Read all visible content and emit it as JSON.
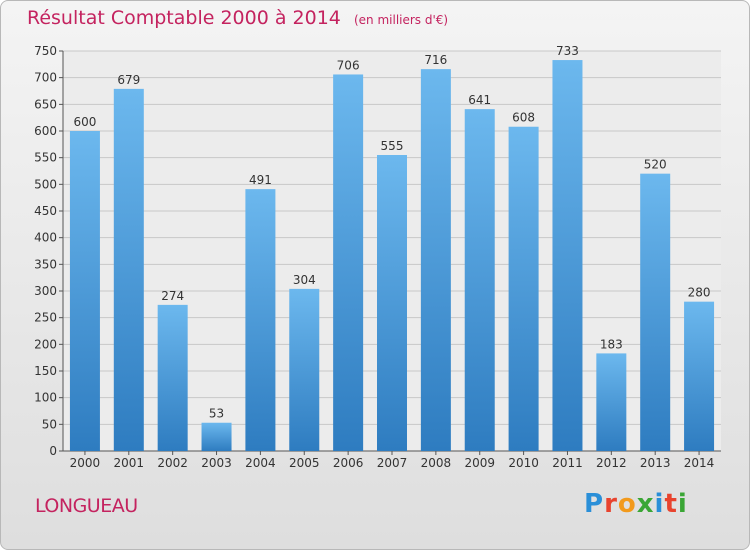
{
  "chart_data": {
    "type": "bar",
    "title": "Résultat Comptable 2000 à 2014",
    "unit": "(en milliers d'€)",
    "categories": [
      "2000",
      "2001",
      "2002",
      "2003",
      "2004",
      "2005",
      "2006",
      "2007",
      "2008",
      "2009",
      "2010",
      "2011",
      "2012",
      "2013",
      "2014"
    ],
    "values": [
      600,
      679,
      274,
      53,
      491,
      304,
      706,
      555,
      716,
      641,
      608,
      733,
      183,
      520,
      280
    ],
    "ylim": [
      0,
      750
    ],
    "yticks": [
      0,
      50,
      100,
      150,
      200,
      250,
      300,
      350,
      400,
      450,
      500,
      550,
      600,
      650,
      700,
      750
    ],
    "grid": true,
    "xlabel": "",
    "ylabel": "",
    "bar_color_top": "#6cb8ee",
    "bar_color_bottom": "#2e7cc0"
  },
  "location": "LONGUEAU",
  "logo": {
    "text": "Proxiti",
    "letters": [
      "P",
      "r",
      "o",
      "x",
      "i",
      "t",
      "i"
    ],
    "colors": [
      "#2a8fd8",
      "#e8432e",
      "#f29a1c",
      "#3aa635",
      "#2a8fd8",
      "#e8432e",
      "#3aa635"
    ]
  },
  "colors": {
    "title": "#c4235f",
    "axis": "#555555",
    "grid": "#c8c8c8"
  }
}
